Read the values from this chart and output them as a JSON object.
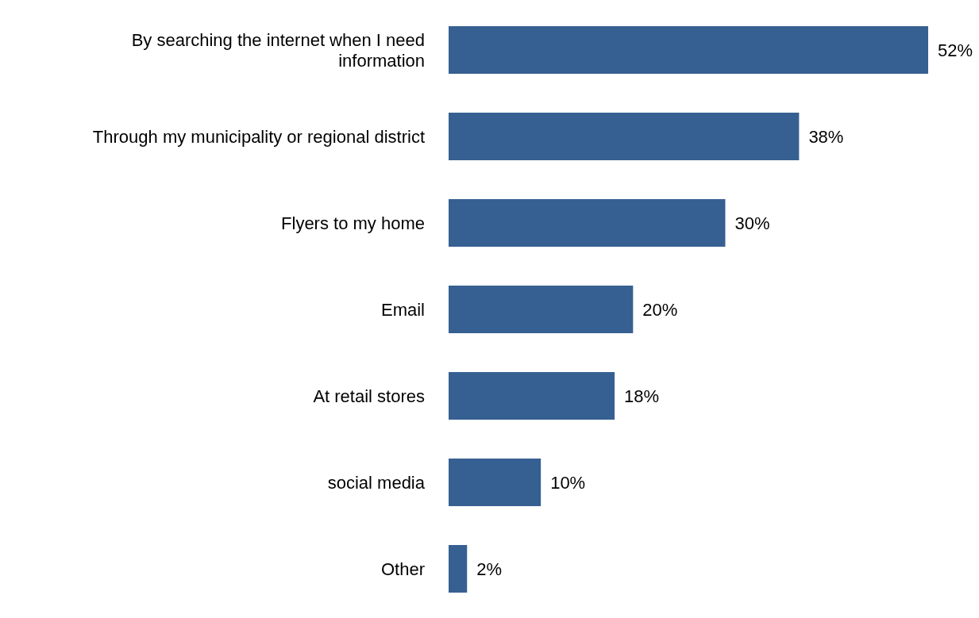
{
  "chart_data": {
    "type": "bar",
    "orientation": "horizontal",
    "categories": [
      "By searching the internet when I need information",
      "Through my municipality or regional district",
      "Flyers to my home",
      "Email",
      "At retail stores",
      "social media",
      "Other"
    ],
    "values": [
      52,
      38,
      30,
      20,
      18,
      10,
      2
    ],
    "value_labels": [
      "52%",
      "38%",
      "30%",
      "20%",
      "18%",
      "10%",
      "2%"
    ],
    "color": "#376092",
    "grid": false,
    "legend": false
  }
}
